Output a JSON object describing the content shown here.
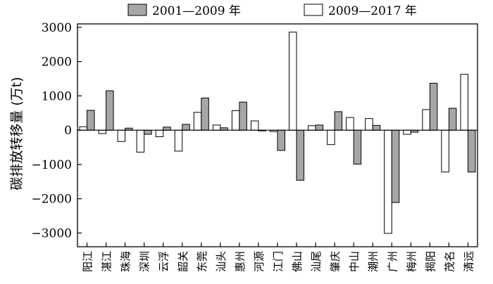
{
  "chart_data": {
    "type": "bar",
    "ylabel": "碳排放转移量 (万t)",
    "ylim": [
      -3400,
      3100
    ],
    "yticks": [
      3000,
      2000,
      1000,
      0,
      -1000,
      -2000,
      -3000
    ],
    "ytick_labels": [
      "3000",
      "2000",
      "1000",
      "0",
      "−1000",
      "−2000",
      "−3000"
    ],
    "legend_position": "top",
    "categories": [
      "阳江",
      "湛江",
      "珠海",
      "深圳",
      "云浮",
      "韶关",
      "东莞",
      "汕头",
      "惠州",
      "河源",
      "江门",
      "佛山",
      "汕尾",
      "肇庆",
      "中山",
      "潮州",
      "广州",
      "梅州",
      "揭阳",
      "茂名",
      "清远"
    ],
    "series": [
      {
        "name": "2009—2017 年",
        "color": "#ffffff",
        "values": [
          100,
          -100,
          -330,
          -640,
          -190,
          -610,
          520,
          150,
          570,
          270,
          -40,
          2860,
          130,
          -420,
          370,
          340,
          -3010,
          -120,
          600,
          -1220,
          1630
        ]
      },
      {
        "name": "2001—2009 年",
        "color": "#a6a6a6",
        "values": [
          580,
          1150,
          60,
          -120,
          90,
          170,
          940,
          70,
          820,
          -20,
          -590,
          -1460,
          150,
          540,
          -990,
          140,
          -2110,
          -60,
          1370,
          640,
          -1220
        ]
      }
    ]
  }
}
